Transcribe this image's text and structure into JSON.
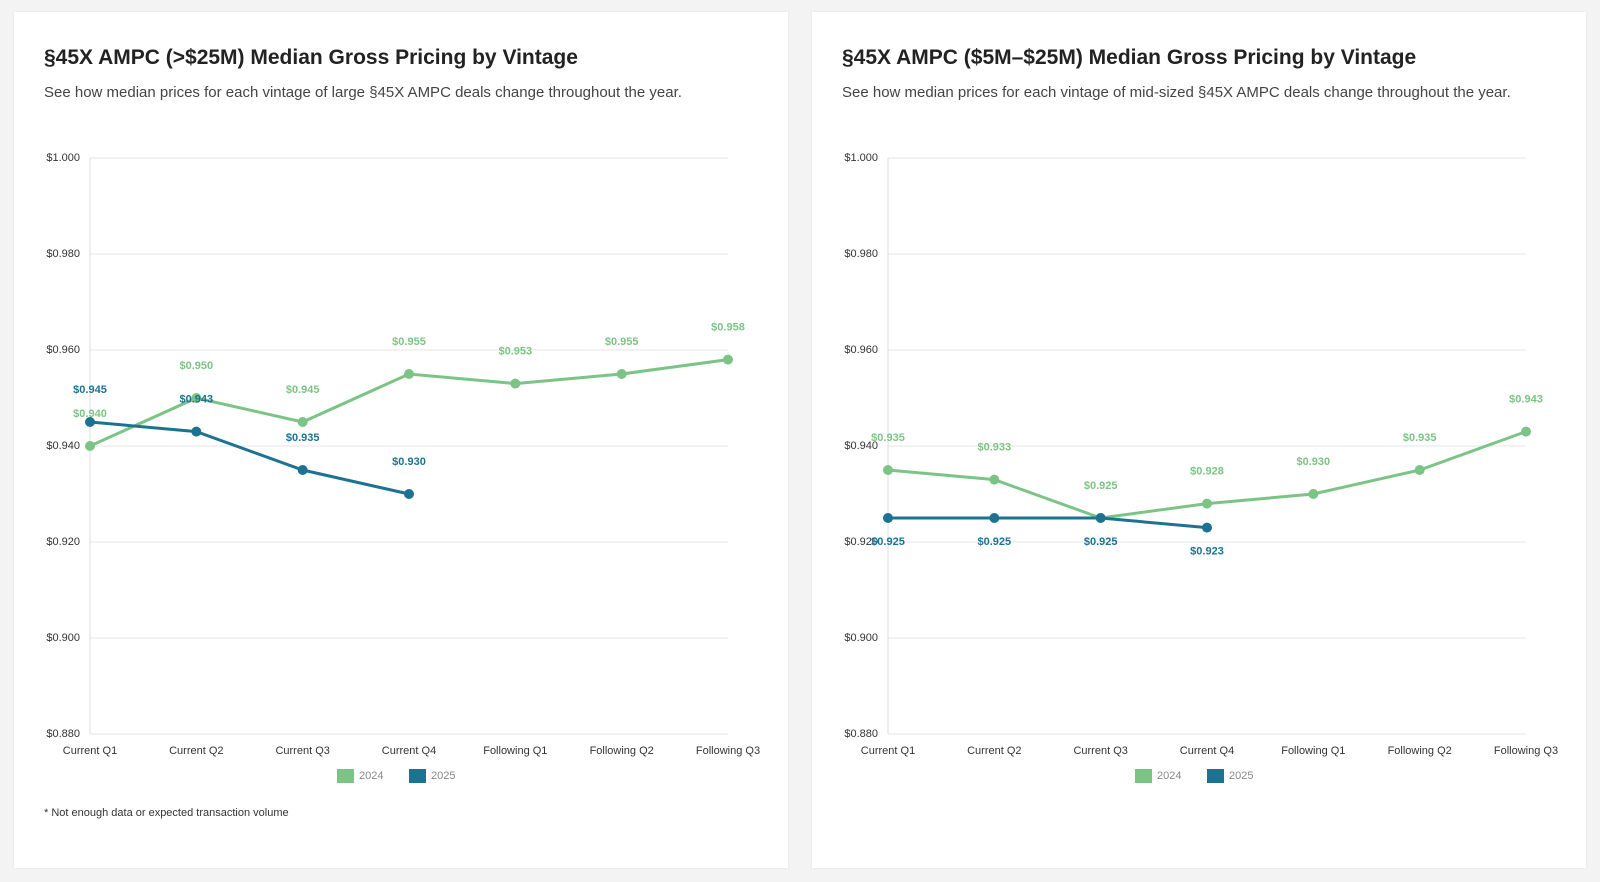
{
  "chart_data": [
    {
      "type": "line",
      "title": "§45X AMPC (>$25M) Median Gross Pricing by Vintage",
      "subtitle": "See how median prices for each vintage of large §45X AMPC deals change throughout the year.",
      "footnote": "* Not enough data or expected transaction volume",
      "categories": [
        "Current Q1",
        "Current Q2",
        "Current Q3",
        "Current Q4",
        "Following Q1",
        "Following Q2",
        "Following Q3"
      ],
      "ylim": [
        0.88,
        1.0
      ],
      "yticks": [
        {
          "value": 0.88,
          "label": "$0.880"
        },
        {
          "value": 0.9,
          "label": "$0.900"
        },
        {
          "value": 0.92,
          "label": "$0.920"
        },
        {
          "value": 0.94,
          "label": "$0.940"
        },
        {
          "value": 0.96,
          "label": "$0.960"
        },
        {
          "value": 0.98,
          "label": "$0.980"
        },
        {
          "value": 1.0,
          "label": "$1.000"
        }
      ],
      "grid": true,
      "legend": "bottom",
      "series": [
        {
          "name": "2024",
          "color": "#7cc486",
          "label_position": "above",
          "values": [
            0.94,
            0.95,
            0.945,
            0.955,
            0.953,
            0.955,
            0.958
          ],
          "value_labels": [
            "$0.940",
            "$0.950",
            "$0.945",
            "$0.955",
            "$0.953",
            "$0.955",
            "$0.958"
          ]
        },
        {
          "name": "2025",
          "color": "#1b7391",
          "label_position": "above",
          "values": [
            0.945,
            0.943,
            0.935,
            0.93,
            null,
            null,
            null
          ],
          "value_labels": [
            "$0.945",
            "$0.943",
            "$0.935",
            "$0.930",
            null,
            null,
            null
          ]
        }
      ]
    },
    {
      "type": "line",
      "title": "§45X AMPC ($5M–$25M) Median Gross Pricing by Vintage",
      "subtitle": "See how median prices for each vintage of mid-sized §45X AMPC deals change throughout the year.",
      "categories": [
        "Current Q1",
        "Current Q2",
        "Current Q3",
        "Current Q4",
        "Following Q1",
        "Following Q2",
        "Following Q3"
      ],
      "ylim": [
        0.88,
        1.0
      ],
      "yticks": [
        {
          "value": 0.88,
          "label": "$0.880"
        },
        {
          "value": 0.9,
          "label": "$0.900"
        },
        {
          "value": 0.92,
          "label": "$0.920"
        },
        {
          "value": 0.94,
          "label": "$0.940"
        },
        {
          "value": 0.96,
          "label": "$0.960"
        },
        {
          "value": 0.98,
          "label": "$0.980"
        },
        {
          "value": 1.0,
          "label": "$1.000"
        }
      ],
      "grid": true,
      "legend": "bottom",
      "series": [
        {
          "name": "2024",
          "color": "#7cc486",
          "label_position": "above",
          "values": [
            0.935,
            0.933,
            0.925,
            0.928,
            0.93,
            0.935,
            0.943
          ],
          "value_labels": [
            "$0.935",
            "$0.933",
            "$0.925",
            "$0.928",
            "$0.930",
            "$0.935",
            "$0.943"
          ]
        },
        {
          "name": "2025",
          "color": "#1b7391",
          "label_position": "below",
          "values": [
            0.925,
            0.925,
            0.925,
            0.923,
            null,
            null,
            null
          ],
          "value_labels": [
            "$0.925",
            "$0.925",
            "$0.925",
            "$0.923",
            null,
            null,
            null
          ]
        }
      ]
    }
  ]
}
